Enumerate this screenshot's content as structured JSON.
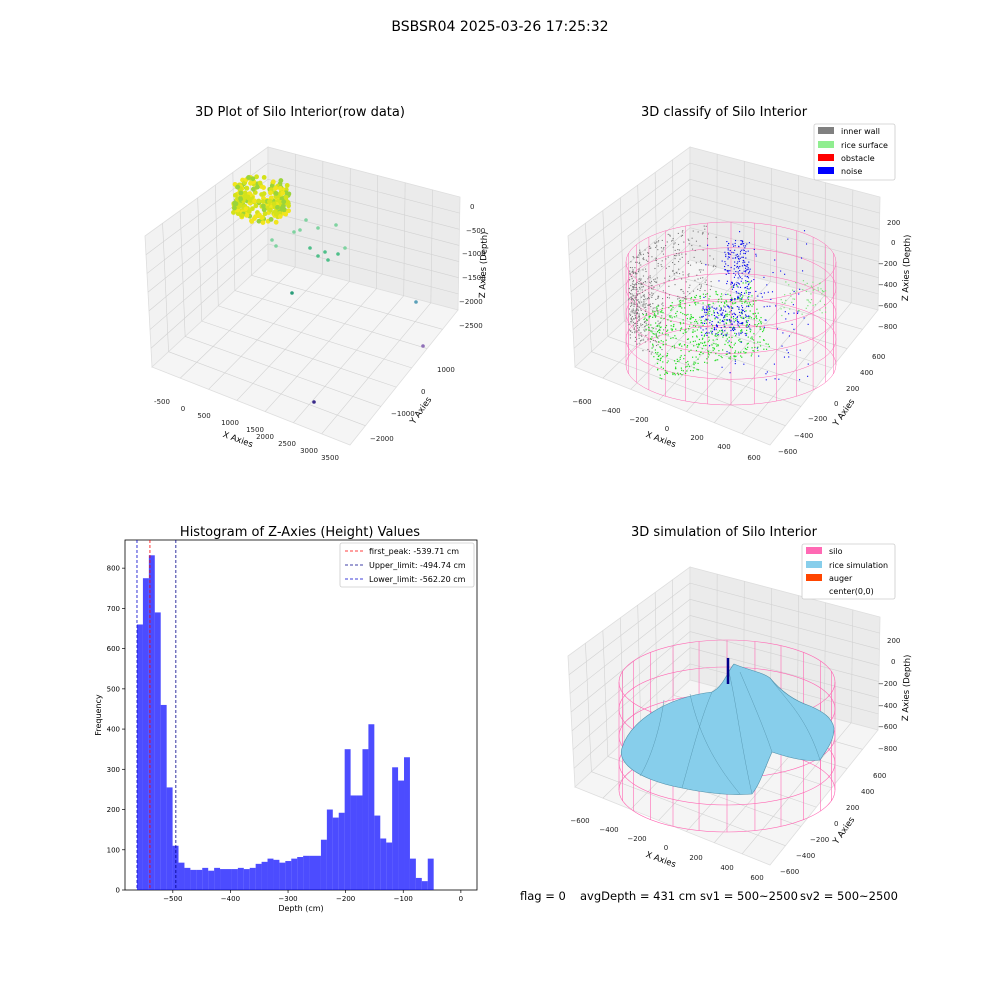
{
  "figure": {
    "suptitle": "BSBSR04 2025-03-26 17:25:32",
    "status_line": {
      "flag": "flag = 0",
      "avg_depth": "avgDepth = 431 cm",
      "sv1": "sv1 = 500~2500",
      "sv2": "sv2 = 500~2500"
    }
  },
  "panels": {
    "raw": {
      "title": "3D Plot of Silo Interior(row data)",
      "xlabel": "X Axies",
      "ylabel": "Y Axies",
      "zlabel": "Z Axies (Depth)",
      "xticks": [
        "-500",
        "0",
        "500",
        "1000",
        "1500",
        "2000",
        "2500",
        "3000",
        "3500"
      ],
      "yticks": [
        "1000",
        "0",
        "−1000",
        "−2000"
      ],
      "zticks": [
        "0",
        "−500",
        "−1000",
        "−1500",
        "−2000",
        "−2500"
      ]
    },
    "classify": {
      "title": "3D classify of Silo Interior",
      "xlabel": "X Axies",
      "ylabel": "Y Axies",
      "zlabel": "Z Axies (Depth)",
      "xticks": [
        "−600",
        "−400",
        "−200",
        "0",
        "200",
        "400",
        "600"
      ],
      "yticks": [
        "600",
        "400",
        "200",
        "0",
        "−200",
        "−400",
        "−600"
      ],
      "zticks": [
        "200",
        "0",
        "−200",
        "−400",
        "−600",
        "−800"
      ],
      "legend": [
        {
          "label": "inner wall",
          "color": "#808080"
        },
        {
          "label": "rice surface",
          "color": "#90ee90"
        },
        {
          "label": "obstacle",
          "color": "#ff0000"
        },
        {
          "label": "noise",
          "color": "#0000ff"
        }
      ]
    },
    "simulation": {
      "title": "3D simulation of Silo Interior",
      "xlabel": "X Axies",
      "ylabel": "Y Axies",
      "zlabel": "Z Axies (Depth)",
      "xticks": [
        "−600",
        "−400",
        "−200",
        "0",
        "200",
        "400",
        "600"
      ],
      "yticks": [
        "600",
        "400",
        "200",
        "0",
        "−200",
        "−400",
        "−600"
      ],
      "zticks": [
        "200",
        "0",
        "−200",
        "−400",
        "−600",
        "−800"
      ],
      "legend": [
        {
          "label": "silo",
          "color": "#ff69b4"
        },
        {
          "label": "rice simulation",
          "color": "#87ceeb"
        },
        {
          "label": "auger",
          "color": "#ff4500"
        },
        {
          "label": "center(0,0)",
          "color": "none"
        }
      ]
    }
  },
  "chart_data": {
    "type": "bar",
    "title": "Histogram of Z-Axies (Height) Values",
    "xlabel": "Depth (cm)",
    "ylabel": "Frequency",
    "xlim": [
      -583,
      28
    ],
    "ylim": [
      0,
      870
    ],
    "bar_color": "#0000ff",
    "x_tick_values": [
      -500,
      -400,
      -300,
      -200,
      -100,
      0
    ],
    "x_tick_labels": [
      "−500",
      "−400",
      "−300",
      "−200",
      "−100",
      "0"
    ],
    "y_ticks": [
      0,
      100,
      200,
      300,
      400,
      500,
      600,
      700,
      800
    ],
    "bin_width": 10.3,
    "bin_starts": [
      -562.2,
      -551.9,
      -541.6,
      -531.3,
      -521.0,
      -510.7,
      -500.4,
      -490.1,
      -479.8,
      -469.5,
      -459.2,
      -448.9,
      -438.6,
      -428.3,
      -418.0,
      -407.7,
      -397.4,
      -387.1,
      -376.8,
      -366.5,
      -356.2,
      -345.9,
      -335.6,
      -325.3,
      -315.0,
      -304.7,
      -294.4,
      -284.1,
      -273.8,
      -263.5,
      -253.2,
      -242.9,
      -232.6,
      -222.3,
      -212.0,
      -201.7,
      -191.4,
      -181.1,
      -170.8,
      -160.5,
      -150.2,
      -139.9,
      -129.6,
      -119.3,
      -109.0,
      -98.7,
      -88.4,
      -78.1,
      -67.8,
      -57.5,
      -47.2,
      -36.9,
      -26.6,
      -16.3,
      -6.0
    ],
    "values": [
      660,
      775,
      832,
      690,
      460,
      255,
      110,
      68,
      55,
      50,
      50,
      55,
      48,
      55,
      52,
      52,
      52,
      55,
      52,
      55,
      65,
      70,
      78,
      75,
      68,
      72,
      78,
      82,
      85,
      85,
      85,
      125,
      200,
      180,
      192,
      350,
      235,
      235,
      350,
      412,
      185,
      128,
      118,
      305,
      272,
      330,
      78,
      30,
      22,
      78,
      0,
      0,
      0,
      0,
      0
    ],
    "vlines": [
      {
        "label": "first_peak: -539.71 cm",
        "x": -539.71,
        "color": "#ff0000"
      },
      {
        "label": "Upper_limit: -494.74 cm",
        "x": -494.74,
        "color": "#00008b"
      },
      {
        "label": "Lower_limit: -562.20 cm",
        "x": -562.2,
        "color": "#0000cd"
      }
    ]
  }
}
